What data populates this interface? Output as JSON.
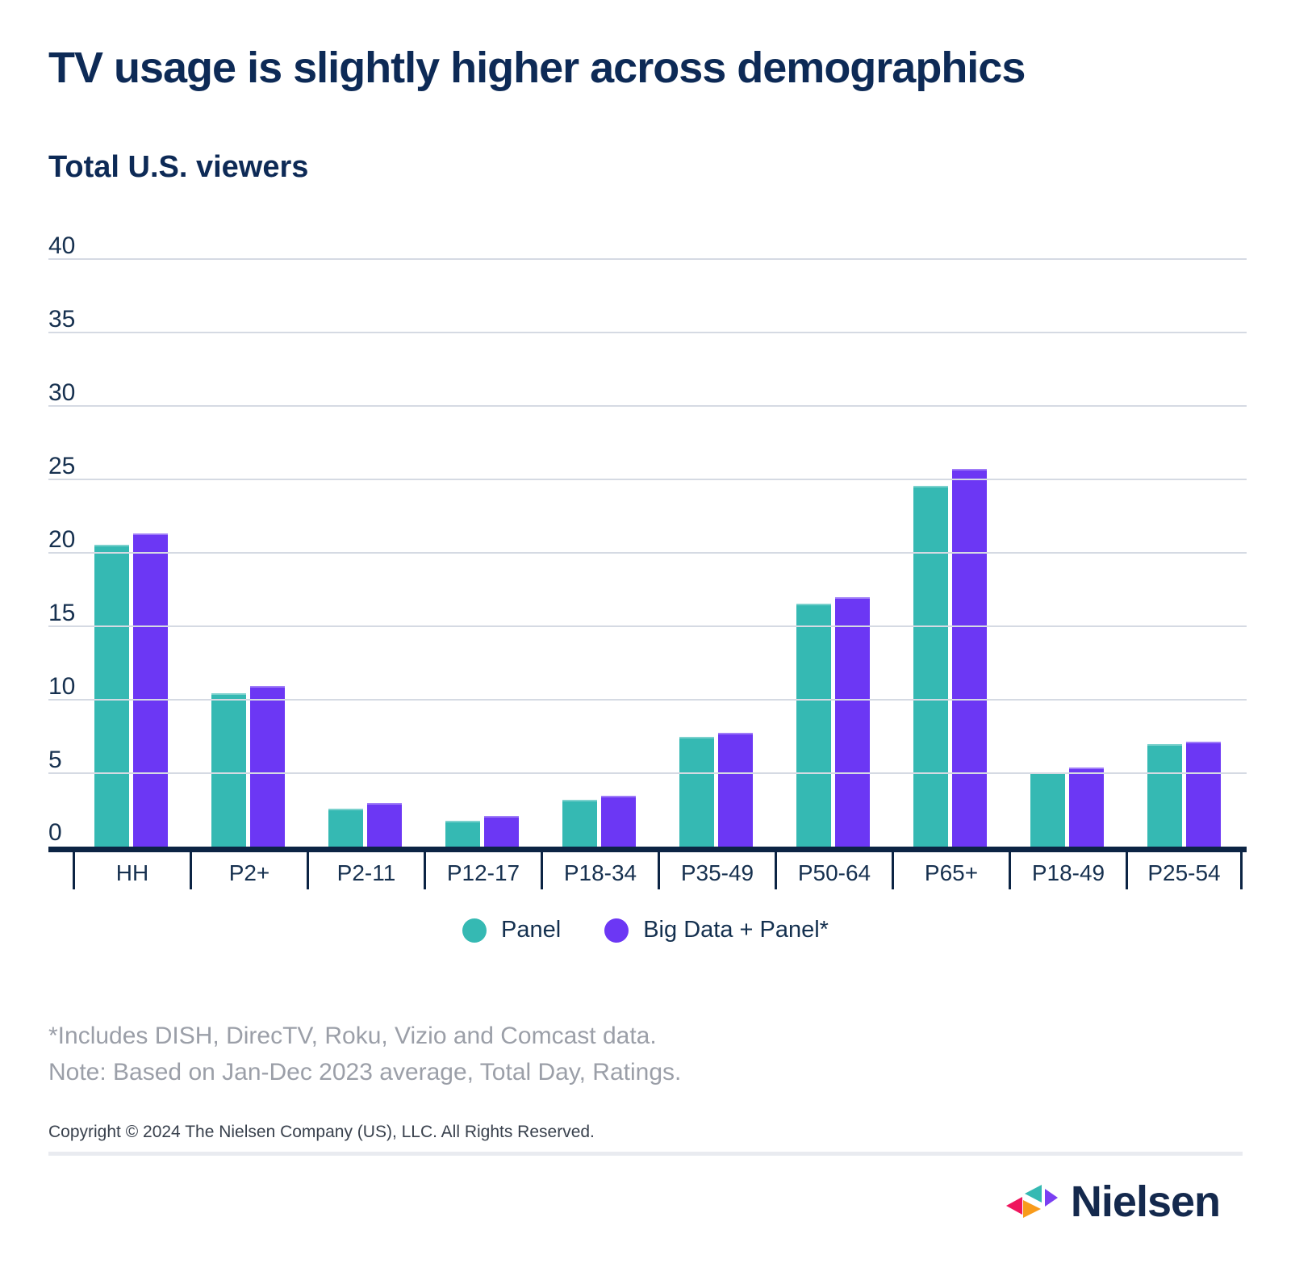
{
  "page": {
    "title": "TV usage is slightly higher across demographics",
    "subtitle": "Total U.S. viewers"
  },
  "chart_data": {
    "type": "bar",
    "title": "Total U.S. viewers",
    "categories": [
      "HH",
      "P2+",
      "P2-11",
      "P12-17",
      "P18-34",
      "P35-49",
      "P50-64",
      "P65+",
      "P18-49",
      "P25-54"
    ],
    "series": [
      {
        "name": "Panel",
        "color": "#35b9b3",
        "values": [
          20.6,
          10.5,
          2.6,
          1.8,
          3.2,
          7.5,
          16.6,
          24.6,
          5.1,
          7.0
        ]
      },
      {
        "name": "Big Data + Panel*",
        "color": "#6c37f4",
        "values": [
          21.4,
          11.0,
          3.0,
          2.1,
          3.5,
          7.8,
          17.0,
          25.8,
          5.4,
          7.2
        ]
      }
    ],
    "ylim": [
      0,
      40
    ],
    "ytick_interval": 5,
    "ytick_labels": [
      "0",
      "5",
      "10",
      "15",
      "20",
      "25",
      "30",
      "35",
      "40"
    ],
    "grid": true,
    "legend_position": "bottom"
  },
  "legend": {
    "items": [
      {
        "label": "Panel",
        "color": "#35b9b3"
      },
      {
        "label": "Big Data + Panel*",
        "color": "#6c37f4"
      }
    ]
  },
  "footnotes": {
    "line1": "*Includes DISH, DirecTV, Roku, Vizio and Comcast data.",
    "line2": "Note: Based on Jan-Dec 2023 average, Total Day, Ratings."
  },
  "copyright": "Copyright © 2024 The Nielsen Company (US), LLC. All Rights Reserved.",
  "logo": {
    "text": "Nielsen",
    "mark_colors": {
      "pink": "#ef155d",
      "teal": "#35b9b3",
      "orange": "#f89b1b",
      "purple": "#7b3ff2"
    }
  },
  "colors": {
    "navy_text": "#0d2a56",
    "gridline": "#d5dae3",
    "axis": "#0c2444",
    "footnote_gray": "#9b9fa8"
  }
}
